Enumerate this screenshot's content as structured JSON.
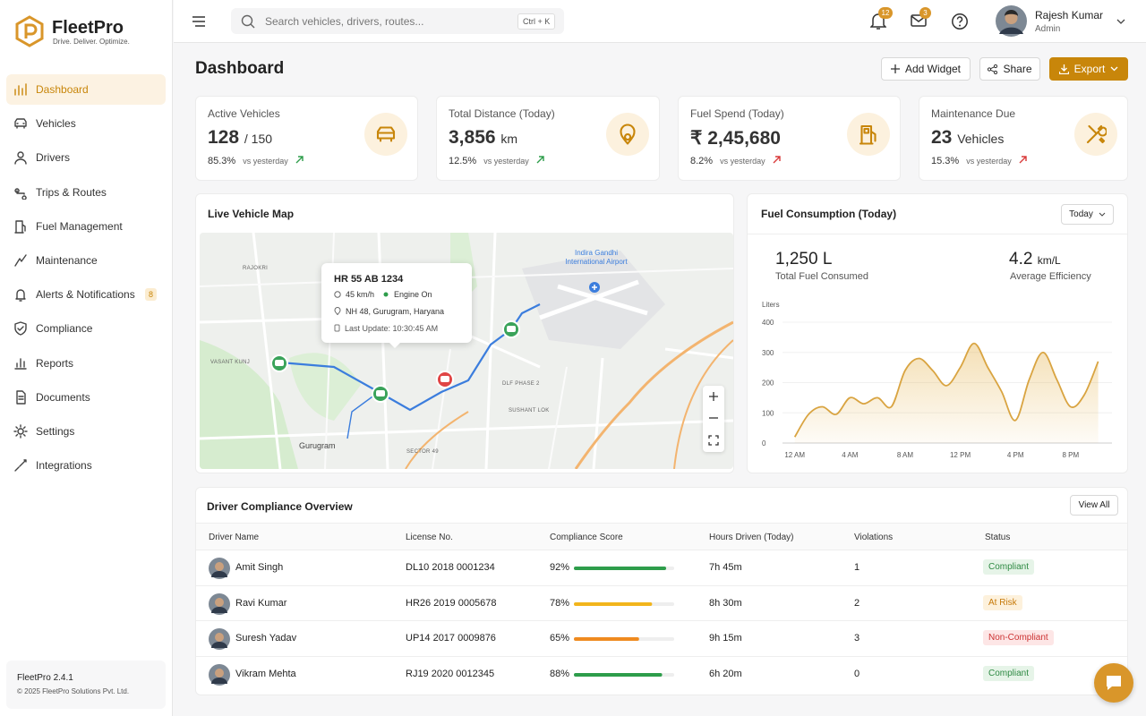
{
  "sidebar": {
    "brand": "FleetPro",
    "tagline": "Drive. Deliver. Optimize.",
    "nav": [
      {
        "label": "Dashboard"
      },
      {
        "label": "Vehicles"
      },
      {
        "label": "Drivers"
      },
      {
        "label": "Trips & Routes"
      },
      {
        "label": "Fuel Management"
      },
      {
        "label": "Maintenance"
      },
      {
        "label": "Alerts & Notifications",
        "badge": "8"
      },
      {
        "label": "Compliance"
      },
      {
        "label": "Reports"
      },
      {
        "label": "Documents"
      },
      {
        "label": "Settings"
      },
      {
        "label": "Integrations"
      }
    ],
    "footer": {
      "version": "FleetPro 2.4.1",
      "copyright": "© 2025 FleetPro Solutions Pvt. Ltd."
    }
  },
  "topbar": {
    "search_placeholder": "Search vehicles, drivers, routes...",
    "shortcut": "Ctrl + K",
    "notifications": "12",
    "messages": "3",
    "user": {
      "name": "Rajesh Kumar",
      "role": "Admin"
    }
  },
  "page": {
    "title": "Dashboard",
    "actions": [
      "Add Widget",
      "Share",
      "Export"
    ]
  },
  "kpis": [
    {
      "label": "Active Vehicles",
      "value": "128",
      "unit": "/ 150",
      "change": "85.3%",
      "compare": "vs yesterday",
      "color": "#2e9d4b"
    },
    {
      "label": "Total Distance (Today)",
      "value": "3,856",
      "unit": "km",
      "change": "12.5%",
      "compare": "vs yesterday",
      "color": "#2e9d4b"
    },
    {
      "label": "Fuel Spend (Today)",
      "value": "₹ 2,45,680",
      "unit": "",
      "change": "8.2%",
      "compare": "vs yesterday",
      "color": "#d93a3a"
    },
    {
      "label": "Maintenance Due",
      "value": "23",
      "unit": "Vehicles",
      "change": "15.3%",
      "compare": "vs yesterday",
      "color": "#d93a3a"
    }
  ],
  "map": {
    "title": "Live Vehicle Map",
    "places": [
      "RAJOKRI",
      "Indira Gandhi International Airport",
      "VASANT KUNJ",
      "DLF PHASE 2",
      "SUSHANT LOK",
      "Gurugram",
      "SECTOR 49"
    ],
    "popup": {
      "vehicle": "HR 55 AB 1234",
      "speed": "45 km/h",
      "state": "Engine On",
      "location": "NH 48, Gurugram, Haryana",
      "updated": "Last Update: 10:30:45 AM"
    }
  },
  "fuel": {
    "title": "Fuel Consumption (Today)",
    "period": "Today",
    "total_value": "1,250",
    "total_unit": "L",
    "total_label": "Total Fuel Consumed",
    "eff_value": "4.2",
    "eff_unit": "km/L",
    "eff_label": "Average Efficiency",
    "chart": {
      "type": "line",
      "y_label": "Liters",
      "color": "#d9a441",
      "x": [
        0,
        1,
        2,
        3,
        4,
        5,
        6,
        7,
        8,
        9,
        10,
        11,
        12,
        13,
        14,
        15,
        16,
        17,
        18,
        19,
        20,
        21,
        22
      ],
      "values": [
        20,
        95,
        120,
        95,
        150,
        130,
        150,
        120,
        240,
        280,
        240,
        190,
        250,
        330,
        250,
        170,
        75,
        210,
        300,
        210,
        120,
        160,
        270
      ],
      "xlim": [
        -0.5,
        23
      ],
      "xticks": [
        {
          "value": 0,
          "label": "12 AM"
        },
        {
          "value": 4,
          "label": "4 AM"
        },
        {
          "value": 8,
          "label": "8 AM"
        },
        {
          "value": 12,
          "label": "12 PM"
        },
        {
          "value": 16,
          "label": "4 PM"
        },
        {
          "value": 20,
          "label": "8 PM"
        }
      ],
      "ylim": [
        0,
        400
      ],
      "yticks": [
        0,
        100,
        200,
        300,
        400
      ]
    }
  },
  "compliance": {
    "title": "Driver Compliance Overview",
    "view_all": "View All",
    "columns": [
      "Driver Name",
      "License No.",
      "Compliance Score",
      "Hours Driven (Today)",
      "Violations",
      "Status"
    ],
    "rows": [
      {
        "name": "Amit Singh",
        "license": "DL10 2018 0001234",
        "score": 92,
        "score_label": "92%",
        "bar_color": "#2e9d4b",
        "hours": "7h 45m",
        "violations": 1,
        "status": "Compliant",
        "status_color": "#2e8a43",
        "status_bg": "#e6f4e8"
      },
      {
        "name": "Ravi Kumar",
        "license": "HR26 2019 0005678",
        "score": 78,
        "score_label": "78%",
        "bar_color": "#f2b51c",
        "hours": "8h 30m",
        "violations": 2,
        "status": "At Risk",
        "status_color": "#c77a0a",
        "status_bg": "#fdf1dc"
      },
      {
        "name": "Suresh Yadav",
        "license": "UP14 2017 0009876",
        "score": 65,
        "score_label": "65%",
        "bar_color": "#ef8a1f",
        "hours": "9h 15m",
        "violations": 3,
        "status": "Non-Compliant",
        "status_color": "#cc3333",
        "status_bg": "#fde6e6"
      },
      {
        "name": "Vikram Mehta",
        "license": "RJ19 2020 0012345",
        "score": 88,
        "score_label": "88%",
        "bar_color": "#2e9d4b",
        "hours": "6h 20m",
        "violations": 0,
        "status": "Compliant",
        "status_color": "#2e8a43",
        "status_bg": "#e6f4e8"
      }
    ]
  }
}
